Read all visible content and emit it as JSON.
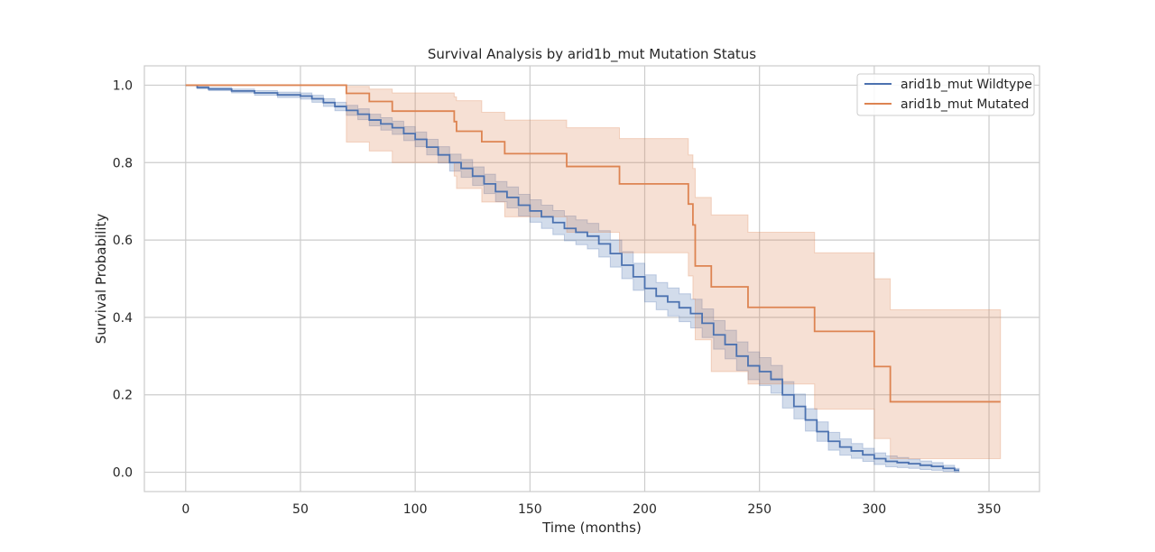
{
  "chart_data": {
    "type": "line",
    "title": "Survival Analysis by arid1b_mut Mutation Status",
    "xlabel": "Time (months)",
    "ylabel": "Survival Probability",
    "xlim": [
      -18,
      372
    ],
    "ylim": [
      -0.05,
      1.05
    ],
    "xticks": [
      0,
      50,
      100,
      150,
      200,
      250,
      300,
      350
    ],
    "yticks": [
      0.0,
      0.2,
      0.4,
      0.6,
      0.8,
      1.0
    ],
    "ytick_labels": [
      "0.0",
      "0.2",
      "0.4",
      "0.6",
      "0.8",
      "1.0"
    ],
    "grid": true,
    "legend_position": "top-right",
    "series": [
      {
        "name": "arid1b_mut Wildtype",
        "color": "#4C72B0",
        "x": [
          0,
          5,
          10,
          20,
          30,
          40,
          50,
          55,
          60,
          65,
          70,
          75,
          80,
          85,
          90,
          95,
          100,
          105,
          110,
          115,
          120,
          125,
          130,
          135,
          140,
          145,
          150,
          155,
          160,
          165,
          170,
          175,
          180,
          185,
          190,
          195,
          200,
          205,
          210,
          215,
          220,
          225,
          230,
          235,
          240,
          245,
          250,
          255,
          260,
          265,
          270,
          275,
          280,
          285,
          290,
          295,
          300,
          305,
          310,
          315,
          320,
          325,
          330,
          335,
          337
        ],
        "y": [
          1.0,
          0.994,
          0.99,
          0.985,
          0.98,
          0.975,
          0.972,
          0.965,
          0.955,
          0.945,
          0.935,
          0.925,
          0.91,
          0.9,
          0.89,
          0.875,
          0.86,
          0.84,
          0.82,
          0.8,
          0.785,
          0.765,
          0.745,
          0.725,
          0.71,
          0.69,
          0.675,
          0.66,
          0.645,
          0.63,
          0.62,
          0.61,
          0.59,
          0.565,
          0.535,
          0.505,
          0.475,
          0.455,
          0.44,
          0.425,
          0.41,
          0.385,
          0.355,
          0.33,
          0.3,
          0.275,
          0.26,
          0.24,
          0.2,
          0.17,
          0.135,
          0.105,
          0.08,
          0.065,
          0.055,
          0.045,
          0.035,
          0.028,
          0.025,
          0.022,
          0.018,
          0.015,
          0.01,
          0.005,
          0.005
        ],
        "ci_lower": [
          1.0,
          0.991,
          0.986,
          0.98,
          0.974,
          0.968,
          0.964,
          0.956,
          0.945,
          0.934,
          0.922,
          0.911,
          0.895,
          0.884,
          0.873,
          0.857,
          0.841,
          0.82,
          0.799,
          0.778,
          0.762,
          0.741,
          0.72,
          0.699,
          0.683,
          0.662,
          0.646,
          0.63,
          0.614,
          0.598,
          0.588,
          0.577,
          0.556,
          0.53,
          0.5,
          0.47,
          0.44,
          0.42,
          0.404,
          0.389,
          0.373,
          0.348,
          0.318,
          0.293,
          0.263,
          0.239,
          0.224,
          0.204,
          0.166,
          0.138,
          0.106,
          0.08,
          0.057,
          0.044,
          0.036,
          0.028,
          0.02,
          0.014,
          0.012,
          0.01,
          0.007,
          0.005,
          0.002,
          0.0,
          0.0
        ],
        "ci_upper": [
          1.0,
          0.997,
          0.994,
          0.99,
          0.986,
          0.982,
          0.98,
          0.974,
          0.965,
          0.956,
          0.948,
          0.939,
          0.925,
          0.916,
          0.907,
          0.893,
          0.879,
          0.86,
          0.841,
          0.822,
          0.808,
          0.789,
          0.77,
          0.751,
          0.737,
          0.718,
          0.704,
          0.69,
          0.676,
          0.662,
          0.652,
          0.643,
          0.624,
          0.6,
          0.57,
          0.54,
          0.51,
          0.49,
          0.476,
          0.461,
          0.447,
          0.422,
          0.392,
          0.367,
          0.337,
          0.311,
          0.296,
          0.276,
          0.234,
          0.202,
          0.164,
          0.13,
          0.103,
          0.086,
          0.074,
          0.062,
          0.05,
          0.042,
          0.038,
          0.034,
          0.029,
          0.025,
          0.018,
          0.01,
          0.01
        ]
      },
      {
        "name": "arid1b_mut Mutated",
        "color": "#DD8452",
        "x": [
          0,
          70,
          80,
          90,
          117,
          118,
          129,
          139,
          166,
          189,
          219,
          221,
          222,
          229,
          245,
          274,
          300,
          307,
          355
        ],
        "y": [
          1.0,
          0.979,
          0.958,
          0.933,
          0.906,
          0.881,
          0.854,
          0.823,
          0.79,
          0.745,
          0.693,
          0.639,
          0.533,
          0.479,
          0.426,
          0.364,
          0.273,
          0.182,
          0.182
        ],
        "ci_lower": [
          1.0,
          0.853,
          0.83,
          0.8,
          0.765,
          0.733,
          0.698,
          0.66,
          0.62,
          0.567,
          0.507,
          0.448,
          0.342,
          0.26,
          0.228,
          0.163,
          0.087,
          0.035,
          0.035
        ],
        "ci_upper": [
          1.0,
          0.997,
          0.99,
          0.98,
          0.97,
          0.96,
          0.93,
          0.91,
          0.89,
          0.862,
          0.82,
          0.785,
          0.71,
          0.665,
          0.62,
          0.567,
          0.5,
          0.42,
          0.42
        ]
      }
    ]
  }
}
